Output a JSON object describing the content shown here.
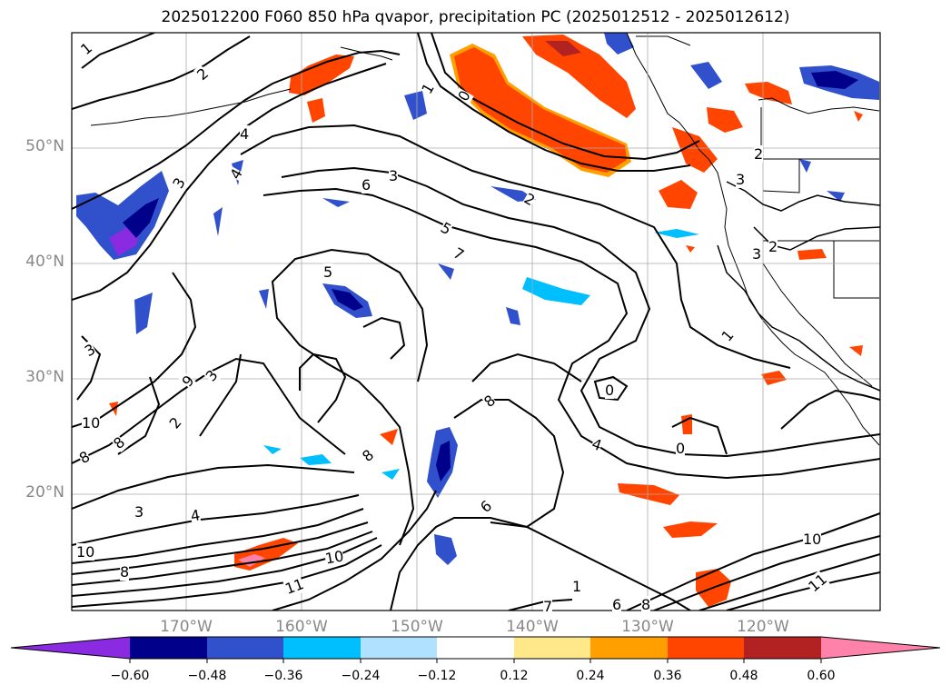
{
  "title": "2025012200 F060 850 hPa qvapor, precipitation PC (2025012512 - 2025012612)",
  "lat_ticks": [
    "50°N",
    "40°N",
    "30°N",
    "20°N"
  ],
  "lon_ticks": [
    "170°W",
    "160°W",
    "150°W",
    "140°W",
    "130°W",
    "120°W"
  ],
  "contour_labels": [
    "1",
    "2",
    "4",
    "3",
    "4",
    "6",
    "3",
    "5",
    "7",
    "5",
    "1",
    "0",
    "2",
    "2",
    "3",
    "3",
    "2",
    "3",
    "1",
    "9",
    "8",
    "10",
    "8",
    "3",
    "4",
    "8",
    "10",
    "11",
    "10",
    "8",
    "6",
    "4",
    "7",
    "6",
    "8",
    "10",
    "11",
    "0",
    "0",
    "8",
    "3",
    "2",
    "1"
  ],
  "colorbar": {
    "ticks": [
      "−0.60",
      "−0.48",
      "−0.36",
      "−0.24",
      "−0.12",
      "0.12",
      "0.24",
      "0.36",
      "0.48",
      "0.60"
    ],
    "colors": [
      "#8a2be2",
      "#00008b",
      "#3050cc",
      "#00bfff",
      "#b0e2ff",
      "#ffffff",
      "#ffe88a",
      "#ffa000",
      "#ff4500",
      "#b22222",
      "#ff82ab"
    ]
  }
}
